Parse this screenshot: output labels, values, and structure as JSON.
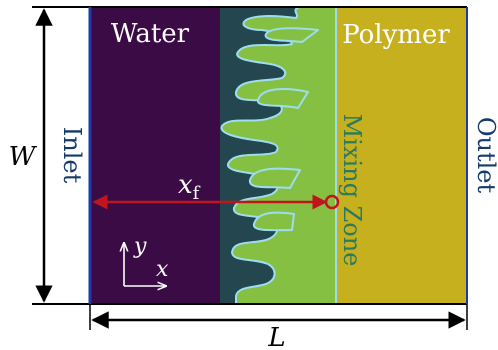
{
  "labels": {
    "water": "Water",
    "polymer": "Polymer",
    "inlet": "Inlet",
    "outlet": "Outlet",
    "mixing_zone": "Mixing Zone",
    "width": "W",
    "length": "L",
    "front_symbol": "x",
    "front_subscript": "f",
    "axis_y": "y",
    "axis_x": "x"
  },
  "colors": {
    "water": "#3a0b45",
    "polymer": "#c7b01d",
    "mixing_dark": "#24464f",
    "mixing_light": "#86c043",
    "finger_edge": "#9edcf0",
    "inlet_line": "#1f3aa8",
    "front_arrow": "#c0141f",
    "inlet_text": "#123a6b",
    "outlet_text": "#123a6b",
    "mixing_text": "#2a7a60",
    "white_text": "#ffffff",
    "black": "#000000"
  }
}
